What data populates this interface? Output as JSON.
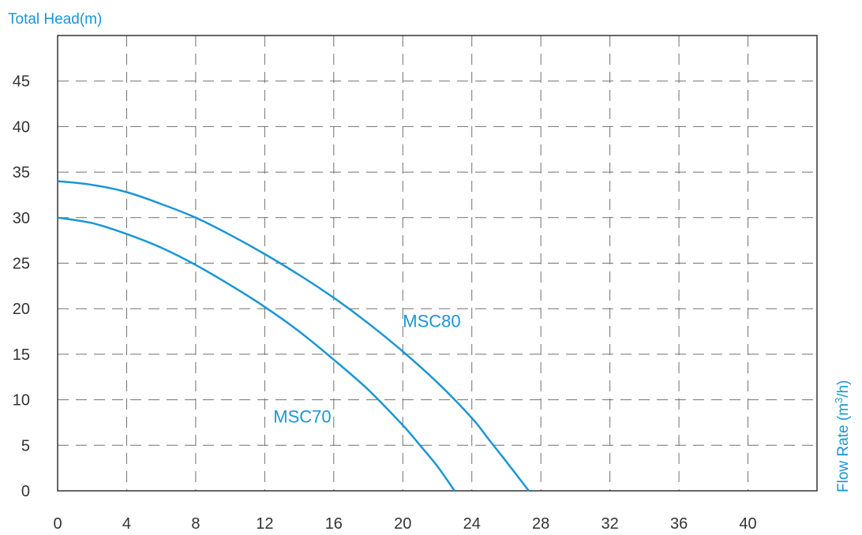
{
  "chart_data": {
    "type": "line",
    "ylabel": "Total Head(m)",
    "xlabel_prefix": "Flow Rate (m",
    "xlabel_sup": "3",
    "xlabel_suffix": "/h)",
    "xlim": [
      0,
      44
    ],
    "ylim": [
      0,
      50
    ],
    "xticks": [
      0,
      4,
      8,
      12,
      16,
      20,
      24,
      28,
      32,
      36,
      40
    ],
    "yticks": [
      0,
      5,
      10,
      15,
      20,
      25,
      30,
      35,
      40,
      45
    ],
    "grid": true,
    "colors": {
      "series": "#1a96d4",
      "axis_title": "#1a96d4",
      "grid": "#707070",
      "frame": "#333333",
      "tick_text": "#333333"
    },
    "series": [
      {
        "name": "MSC80",
        "label_at": [
          20,
          18
        ],
        "x": [
          0,
          2,
          4,
          6,
          8,
          10,
          12,
          14,
          16,
          18,
          20,
          22,
          24,
          25,
          26,
          27.3
        ],
        "y": [
          34,
          33.6,
          32.8,
          31.5,
          30,
          28.1,
          26,
          23.7,
          21.2,
          18.4,
          15.3,
          11.9,
          8.0,
          5.6,
          3.2,
          0
        ]
      },
      {
        "name": "MSC70",
        "label_at": [
          12.5,
          7.5
        ],
        "x": [
          0,
          2,
          4,
          6,
          8,
          10,
          12,
          14,
          16,
          18,
          20,
          21,
          22,
          23
        ],
        "y": [
          30,
          29.4,
          28.2,
          26.7,
          24.8,
          22.6,
          20.2,
          17.5,
          14.4,
          11.1,
          7.2,
          5.0,
          2.7,
          0
        ]
      }
    ]
  }
}
